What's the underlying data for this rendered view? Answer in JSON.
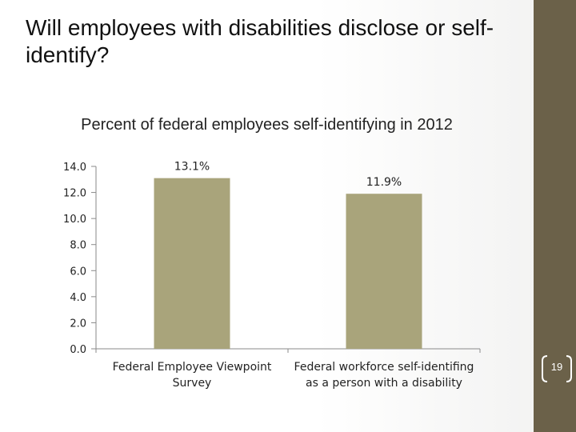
{
  "slide": {
    "title": "Will employees with disabilities disclose or self-identify?",
    "page_number": "19"
  },
  "colors": {
    "bar": "#a9a47b",
    "side_band": "#6b6149",
    "axis": "#8a8a8a",
    "text": "#222222"
  },
  "chart_data": {
    "type": "bar",
    "title": "Percent of federal employees self-identifying in 2012",
    "categories": [
      [
        "Federal Employee Viewpoint",
        "Survey"
      ],
      [
        "Federal workforce self-identifing",
        "as a person with a disability"
      ]
    ],
    "values": [
      13.1,
      11.9
    ],
    "data_labels": [
      "13.1%",
      "11.9%"
    ],
    "ylim": [
      0,
      14
    ],
    "yticks": [
      0,
      2,
      4,
      6,
      8,
      10,
      12,
      14
    ],
    "ytick_labels": [
      "0.0",
      "2.0",
      "4.0",
      "6.0",
      "8.0",
      "10.0",
      "12.0",
      "14.0"
    ],
    "grid": false,
    "legend": "none",
    "xlabel": "",
    "ylabel": ""
  }
}
